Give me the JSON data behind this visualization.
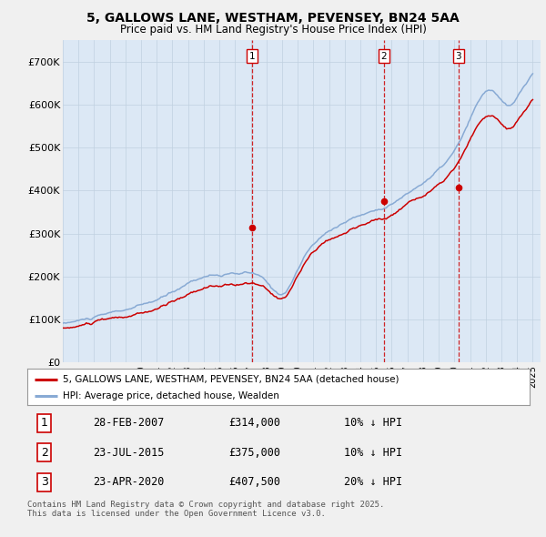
{
  "title_line1": "5, GALLOWS LANE, WESTHAM, PEVENSEY, BN24 5AA",
  "title_line2": "Price paid vs. HM Land Registry's House Price Index (HPI)",
  "bg_color": "#f0f0f0",
  "plot_bg_color": "#dce8f5",
  "ylim": [
    0,
    750000
  ],
  "yticks": [
    0,
    100000,
    200000,
    300000,
    400000,
    500000,
    600000,
    700000
  ],
  "ytick_labels": [
    "£0",
    "£100K",
    "£200K",
    "£300K",
    "£400K",
    "£500K",
    "£600K",
    "£700K"
  ],
  "sale_prices": [
    314000,
    375000,
    407500
  ],
  "sale_labels": [
    "1",
    "2",
    "3"
  ],
  "vline_color": "#cc0000",
  "hpi_line_color": "#88aad4",
  "price_line_color": "#cc0000",
  "legend_label_price": "5, GALLOWS LANE, WESTHAM, PEVENSEY, BN24 5AA (detached house)",
  "legend_label_hpi": "HPI: Average price, detached house, Wealden",
  "table_data": [
    [
      "1",
      "28-FEB-2007",
      "£314,000",
      "10% ↓ HPI"
    ],
    [
      "2",
      "23-JUL-2015",
      "£375,000",
      "10% ↓ HPI"
    ],
    [
      "3",
      "23-APR-2020",
      "£407,500",
      "20% ↓ HPI"
    ]
  ],
  "footnote": "Contains HM Land Registry data © Crown copyright and database right 2025.\nThis data is licensed under the Open Government Licence v3.0.",
  "grid_color": "#c0d0e0"
}
